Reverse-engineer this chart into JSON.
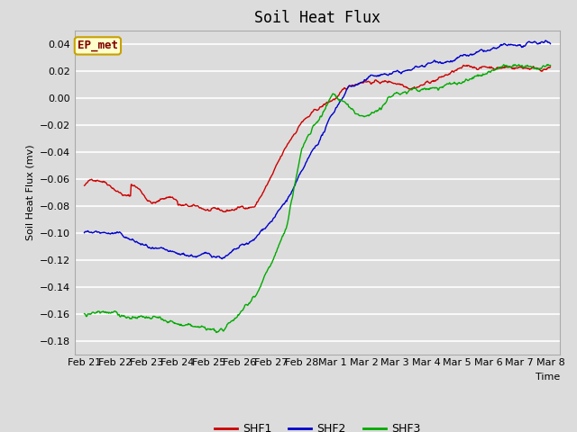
{
  "title": "Soil Heat Flux",
  "ylabel": "Soil Heat Flux (mv)",
  "xlabel": "Time",
  "ylim": [
    -0.19,
    0.05
  ],
  "yticks": [
    -0.18,
    -0.16,
    -0.14,
    -0.12,
    -0.1,
    -0.08,
    -0.06,
    -0.04,
    -0.02,
    0.0,
    0.02,
    0.04
  ],
  "background_color": "#dcdcdc",
  "plot_bg_color": "#dcdcdc",
  "grid_color": "#ffffff",
  "annotation_text": "EP_met",
  "annotation_bg": "#ffffcc",
  "annotation_border": "#c8a000",
  "annotation_text_color": "#800000",
  "legend_entries": [
    "SHF1",
    "SHF2",
    "SHF3"
  ],
  "line_colors": [
    "#cc0000",
    "#0000cc",
    "#00aa00"
  ],
  "x_labels": [
    "Feb 21",
    "Feb 22",
    "Feb 23",
    "Feb 24",
    "Feb 25",
    "Feb 26",
    "Feb 27",
    "Feb 28",
    "Mar 1",
    "Mar 2",
    "Mar 3",
    "Mar 4",
    "Mar 5",
    "Mar 6",
    "Mar 7",
    "Mar 8"
  ],
  "n_days": 16
}
